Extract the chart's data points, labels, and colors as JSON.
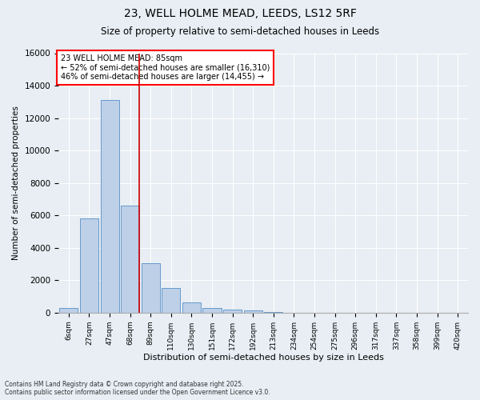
{
  "title1": "23, WELL HOLME MEAD, LEEDS, LS12 5RF",
  "title2": "Size of property relative to semi-detached houses in Leeds",
  "xlabel": "Distribution of semi-detached houses by size in Leeds",
  "ylabel": "Number of semi-detached properties",
  "bin_labels": [
    "6sqm",
    "27sqm",
    "47sqm",
    "68sqm",
    "89sqm",
    "110sqm",
    "130sqm",
    "151sqm",
    "172sqm",
    "192sqm",
    "213sqm",
    "234sqm",
    "254sqm",
    "275sqm",
    "296sqm",
    "317sqm",
    "337sqm",
    "358sqm",
    "399sqm",
    "420sqm"
  ],
  "bar_values": [
    300,
    5800,
    13100,
    6600,
    3050,
    1500,
    620,
    280,
    175,
    130,
    60,
    0,
    0,
    0,
    0,
    0,
    0,
    0,
    0,
    0
  ],
  "bar_color": "#bdd0e8",
  "bar_edge_color": "#6699cc",
  "annotation_title": "23 WELL HOLME MEAD: 85sqm",
  "annotation_line1": "← 52% of semi-detached houses are smaller (16,310)",
  "annotation_line2": "46% of semi-detached houses are larger (14,455) →",
  "vline_color": "#cc0000",
  "vline_x_bin": 3,
  "ylim": [
    0,
    16000
  ],
  "yticks": [
    0,
    2000,
    4000,
    6000,
    8000,
    10000,
    12000,
    14000,
    16000
  ],
  "footer1": "Contains HM Land Registry data © Crown copyright and database right 2025.",
  "footer2": "Contains public sector information licensed under the Open Government Licence v3.0.",
  "background_color": "#e8eef4",
  "plot_background": "#e8eef4"
}
